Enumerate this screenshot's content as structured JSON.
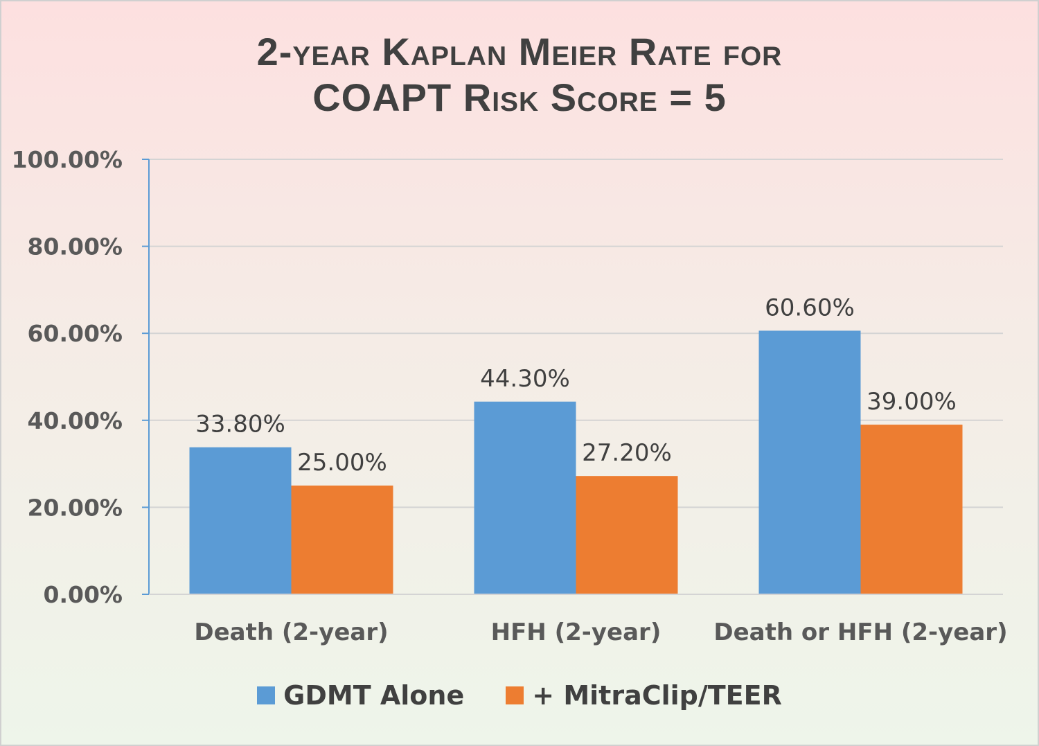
{
  "chart_data": {
    "type": "bar",
    "title_line1": "2-year Kaplan Meier Rate for",
    "title_line2": "COAPT Risk Score = 5",
    "categories": [
      "Death (2-year)",
      "HFH (2-year)",
      "Death or HFH (2-year)"
    ],
    "series": [
      {
        "name": "GDMT Alone",
        "color": "#5b9bd5",
        "values": [
          33.8,
          44.3,
          60.6
        ],
        "labels": [
          "33.80%",
          "44.30%",
          "60.60%"
        ]
      },
      {
        "name": "+ MitraClip/TEER",
        "color": "#ed7d31",
        "values": [
          25.0,
          27.2,
          39.0
        ],
        "labels": [
          "25.00%",
          "27.20%",
          "39.00%"
        ]
      }
    ],
    "ylim": [
      0,
      100
    ],
    "yticks": [
      0,
      20,
      40,
      60,
      80,
      100
    ],
    "ytick_labels": [
      "0.00%",
      "20.00%",
      "40.00%",
      "60.00%",
      "80.00%",
      "100.00%"
    ],
    "grid": true,
    "legend_position": "bottom"
  }
}
